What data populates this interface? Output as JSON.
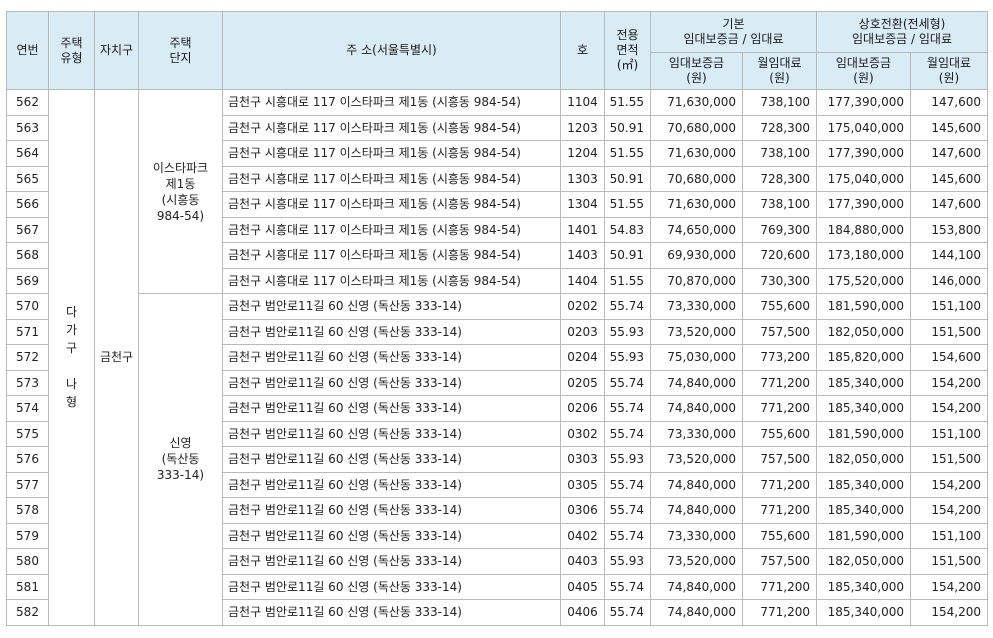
{
  "headers": {
    "no": "연번",
    "house_type": [
      "주택",
      "유형"
    ],
    "district": "자치구",
    "complex": [
      "주택",
      "단지"
    ],
    "address": "주 소(서울특별시)",
    "unit": "호",
    "area": [
      "전용",
      "면적",
      "(㎡)"
    ],
    "basic": [
      "기본",
      "임대보증금 / 임대료"
    ],
    "conversion": [
      "상호전환(전세형)",
      "임대보증금 / 임대료"
    ],
    "deposit": [
      "임대보증금",
      "(원)"
    ],
    "rent": [
      "월임대료",
      "(원)"
    ]
  },
  "house_type": [
    "다",
    "가",
    "구",
    "",
    "나",
    "형"
  ],
  "district": "금천구",
  "complexes": [
    {
      "name": [
        "이스타파크",
        "제1동",
        "(시흥동",
        "984-54)"
      ],
      "rows": 8
    },
    {
      "name": [
        "신영",
        "(독산동",
        "333-14)"
      ],
      "rows": 13
    }
  ],
  "rows": [
    {
      "no": "562",
      "address": "금천구 시흥대로 117 이스타파크 제1동 (시흥동 984-54)",
      "unit": "1104",
      "area": "51.55",
      "deposit": "71,630,000",
      "rent": "738,100",
      "conv_deposit": "177,390,000",
      "conv_rent": "147,600"
    },
    {
      "no": "563",
      "address": "금천구 시흥대로 117 이스타파크 제1동 (시흥동 984-54)",
      "unit": "1203",
      "area": "50.91",
      "deposit": "70,680,000",
      "rent": "728,300",
      "conv_deposit": "175,040,000",
      "conv_rent": "145,600"
    },
    {
      "no": "564",
      "address": "금천구 시흥대로 117 이스타파크 제1동 (시흥동 984-54)",
      "unit": "1204",
      "area": "51.55",
      "deposit": "71,630,000",
      "rent": "738,100",
      "conv_deposit": "177,390,000",
      "conv_rent": "147,600"
    },
    {
      "no": "565",
      "address": "금천구 시흥대로 117 이스타파크 제1동 (시흥동 984-54)",
      "unit": "1303",
      "area": "50.91",
      "deposit": "70,680,000",
      "rent": "728,300",
      "conv_deposit": "175,040,000",
      "conv_rent": "145,600"
    },
    {
      "no": "566",
      "address": "금천구 시흥대로 117 이스타파크 제1동 (시흥동 984-54)",
      "unit": "1304",
      "area": "51.55",
      "deposit": "71,630,000",
      "rent": "738,100",
      "conv_deposit": "177,390,000",
      "conv_rent": "147,600"
    },
    {
      "no": "567",
      "address": "금천구 시흥대로 117 이스타파크 제1동 (시흥동 984-54)",
      "unit": "1401",
      "area": "54.83",
      "deposit": "74,650,000",
      "rent": "769,300",
      "conv_deposit": "184,880,000",
      "conv_rent": "153,800"
    },
    {
      "no": "568",
      "address": "금천구 시흥대로 117 이스타파크 제1동 (시흥동 984-54)",
      "unit": "1403",
      "area": "50.91",
      "deposit": "69,930,000",
      "rent": "720,600",
      "conv_deposit": "173,180,000",
      "conv_rent": "144,100"
    },
    {
      "no": "569",
      "address": "금천구 시흥대로 117 이스타파크 제1동 (시흥동 984-54)",
      "unit": "1404",
      "area": "51.55",
      "deposit": "70,870,000",
      "rent": "730,300",
      "conv_deposit": "175,520,000",
      "conv_rent": "146,000"
    },
    {
      "no": "570",
      "address": "금천구 범안로11길 60 신영 (독산동 333-14)",
      "unit": "0202",
      "area": "55.74",
      "deposit": "73,330,000",
      "rent": "755,600",
      "conv_deposit": "181,590,000",
      "conv_rent": "151,100"
    },
    {
      "no": "571",
      "address": "금천구 범안로11길 60 신영 (독산동 333-14)",
      "unit": "0203",
      "area": "55.93",
      "deposit": "73,520,000",
      "rent": "757,500",
      "conv_deposit": "182,050,000",
      "conv_rent": "151,500"
    },
    {
      "no": "572",
      "address": "금천구 범안로11길 60 신영 (독산동 333-14)",
      "unit": "0204",
      "area": "55.93",
      "deposit": "75,030,000",
      "rent": "773,200",
      "conv_deposit": "185,820,000",
      "conv_rent": "154,600"
    },
    {
      "no": "573",
      "address": "금천구 범안로11길 60 신영 (독산동 333-14)",
      "unit": "0205",
      "area": "55.74",
      "deposit": "74,840,000",
      "rent": "771,200",
      "conv_deposit": "185,340,000",
      "conv_rent": "154,200"
    },
    {
      "no": "574",
      "address": "금천구 범안로11길 60 신영 (독산동 333-14)",
      "unit": "0206",
      "area": "55.74",
      "deposit": "74,840,000",
      "rent": "771,200",
      "conv_deposit": "185,340,000",
      "conv_rent": "154,200"
    },
    {
      "no": "575",
      "address": "금천구 범안로11길 60 신영 (독산동 333-14)",
      "unit": "0302",
      "area": "55.74",
      "deposit": "73,330,000",
      "rent": "755,600",
      "conv_deposit": "181,590,000",
      "conv_rent": "151,100"
    },
    {
      "no": "576",
      "address": "금천구 범안로11길 60 신영 (독산동 333-14)",
      "unit": "0303",
      "area": "55.93",
      "deposit": "73,520,000",
      "rent": "757,500",
      "conv_deposit": "182,050,000",
      "conv_rent": "151,500"
    },
    {
      "no": "577",
      "address": "금천구 범안로11길 60 신영 (독산동 333-14)",
      "unit": "0305",
      "area": "55.74",
      "deposit": "74,840,000",
      "rent": "771,200",
      "conv_deposit": "185,340,000",
      "conv_rent": "154,200"
    },
    {
      "no": "578",
      "address": "금천구 범안로11길 60 신영 (독산동 333-14)",
      "unit": "0306",
      "area": "55.74",
      "deposit": "74,840,000",
      "rent": "771,200",
      "conv_deposit": "185,340,000",
      "conv_rent": "154,200"
    },
    {
      "no": "579",
      "address": "금천구 범안로11길 60 신영 (독산동 333-14)",
      "unit": "0402",
      "area": "55.74",
      "deposit": "73,330,000",
      "rent": "755,600",
      "conv_deposit": "181,590,000",
      "conv_rent": "151,100"
    },
    {
      "no": "580",
      "address": "금천구 범안로11길 60 신영 (독산동 333-14)",
      "unit": "0403",
      "area": "55.93",
      "deposit": "73,520,000",
      "rent": "757,500",
      "conv_deposit": "182,050,000",
      "conv_rent": "151,500"
    },
    {
      "no": "581",
      "address": "금천구 범안로11길 60 신영 (독산동 333-14)",
      "unit": "0405",
      "area": "55.74",
      "deposit": "74,840,000",
      "rent": "771,200",
      "conv_deposit": "185,340,000",
      "conv_rent": "154,200"
    },
    {
      "no": "582",
      "address": "금천구 범안로11길 60 신영 (독산동 333-14)",
      "unit": "0406",
      "area": "55.74",
      "deposit": "74,840,000",
      "rent": "771,200",
      "conv_deposit": "185,340,000",
      "conv_rent": "154,200"
    }
  ]
}
